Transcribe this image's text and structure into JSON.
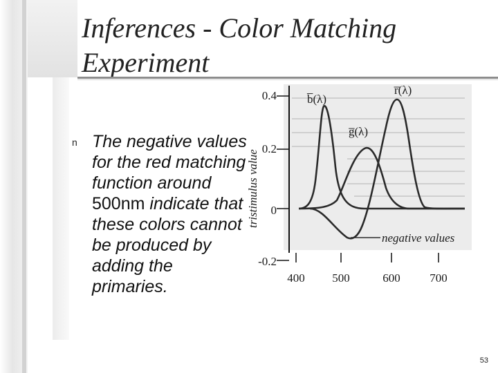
{
  "slide": {
    "title": "Inferences - Color Matching Experiment",
    "bullet": {
      "marker": "n",
      "part1": "The negative values for the red matching function around ",
      "value": "500",
      "part2": "nm",
      "part3": " indicate that these colors cannot be produced by adding the primaries."
    },
    "slide_number": "53"
  },
  "figure": {
    "y_axis_label": "tristimulus value",
    "y_ticks": [
      "0.4",
      "0.2",
      "0",
      "-0.2"
    ],
    "x_ticks": [
      "400",
      "500",
      "600",
      "700"
    ],
    "curve_labels": {
      "blue": "b̅(λ)",
      "green": "g̅(λ)",
      "red": "r̅(λ)"
    },
    "annotation": "negative values"
  }
}
